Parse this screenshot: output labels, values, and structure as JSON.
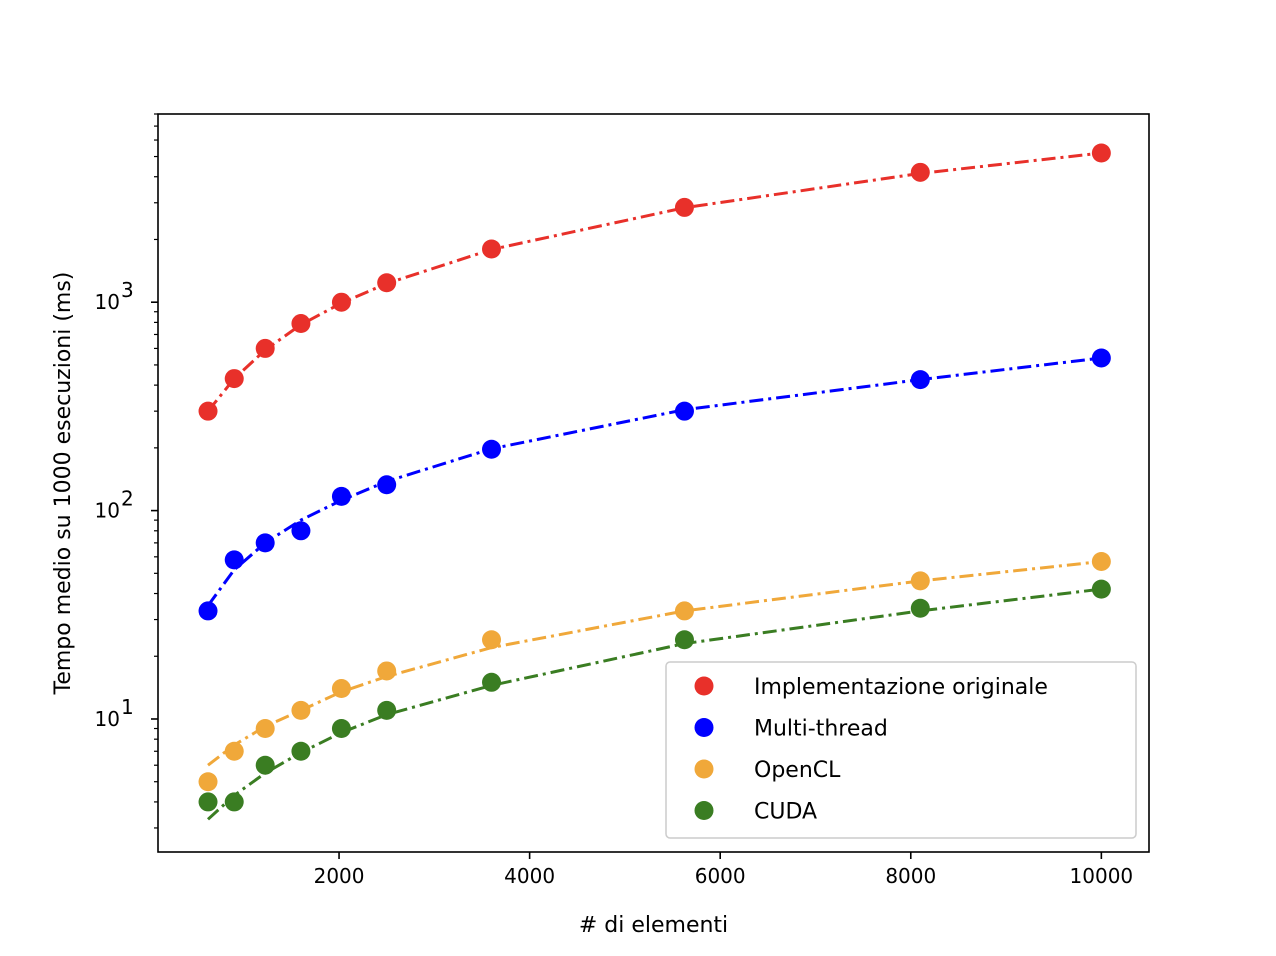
{
  "chart_data": {
    "type": "line",
    "xlabel": "# di elementi",
    "ylabel": "Tempo medio su 1000 esecuzioni (ms)",
    "xscale": "linear",
    "yscale": "log",
    "xlim": [
      100,
      10500
    ],
    "ylim": [
      2.3,
      8000
    ],
    "xticks": [
      2000,
      4000,
      6000,
      8000,
      10000
    ],
    "xtick_labels": [
      "2000",
      "4000",
      "6000",
      "8000",
      "10000"
    ],
    "yticks": [
      10,
      100,
      1000
    ],
    "ytick_labels": [
      {
        "base": "10",
        "exp": "1"
      },
      {
        "base": "10",
        "exp": "2"
      },
      {
        "base": "10",
        "exp": "3"
      }
    ],
    "grid": false,
    "legend_position": "bottom-right",
    "x": [
      625,
      900,
      1225,
      1600,
      2025,
      2500,
      3600,
      5625,
      8100,
      10000
    ],
    "series": [
      {
        "name": "Implementazione originale",
        "color": "#e8302a",
        "values": [
          300,
          430,
          600,
          790,
          1000,
          1240,
          1800,
          2850,
          4200,
          5200
        ],
        "fit": [
          300,
          430,
          590,
          780,
          990,
          1230,
          1790,
          2840,
          4150,
          5200
        ]
      },
      {
        "name": "Multi-thread",
        "color": "#0000ff",
        "values": [
          33,
          58,
          70,
          80,
          117,
          133,
          197,
          300,
          425,
          540
        ],
        "fit": [
          35,
          52,
          70,
          90,
          112,
          138,
          198,
          305,
          425,
          540
        ]
      },
      {
        "name": "OpenCL",
        "color": "#f0a83a",
        "values": [
          5,
          7,
          9,
          11,
          14,
          17,
          24,
          33,
          46,
          57
        ],
        "fit": [
          6,
          7.5,
          9.2,
          11,
          13.5,
          16,
          22,
          33,
          46,
          57
        ]
      },
      {
        "name": "CUDA",
        "color": "#3a7d22",
        "values": [
          4,
          4,
          6,
          7,
          9,
          11,
          15,
          24,
          34,
          42
        ],
        "fit": [
          3.3,
          4.3,
          5.5,
          6.9,
          8.6,
          10.5,
          14.5,
          23,
          33,
          42
        ]
      }
    ]
  }
}
